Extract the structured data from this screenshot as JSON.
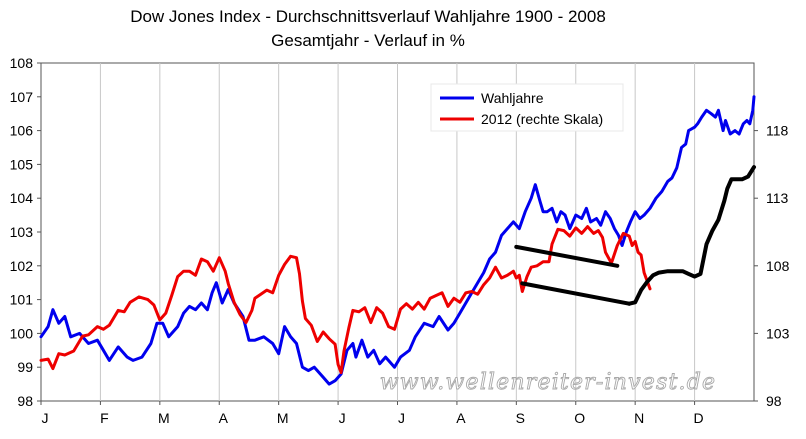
{
  "chart_data": {
    "type": "line",
    "title": "Dow Jones Index - Durchschnittsverlauf Wahljahre 1900 - 2008",
    "subtitle": "Gesamtjahr - Verlauf in %",
    "categories": [
      "J",
      "F",
      "M",
      "A",
      "M",
      "J",
      "J",
      "A",
      "S",
      "O",
      "N",
      "D"
    ],
    "y_left": {
      "min": 98,
      "max": 108,
      "ticks": [
        "98",
        "99",
        "100",
        "101",
        "102",
        "103",
        "104",
        "105",
        "106",
        "107",
        "108"
      ]
    },
    "y_right": {
      "min": 98,
      "max": 123,
      "ticks": [
        "98",
        "103",
        "108",
        "113",
        "118"
      ]
    },
    "grid": "vertical",
    "legend_position": "top-right",
    "series": [
      {
        "name": "Wahljahre",
        "color": "#0000ee",
        "axis": "left",
        "points": [
          [
            0,
            99.9
          ],
          [
            0.12,
            100.2
          ],
          [
            0.2,
            100.7
          ],
          [
            0.3,
            100.3
          ],
          [
            0.4,
            100.5
          ],
          [
            0.5,
            99.9
          ],
          [
            0.65,
            100.0
          ],
          [
            0.8,
            99.7
          ],
          [
            0.95,
            99.8
          ],
          [
            1.05,
            99.5
          ],
          [
            1.15,
            99.2
          ],
          [
            1.3,
            99.6
          ],
          [
            1.45,
            99.3
          ],
          [
            1.55,
            99.2
          ],
          [
            1.7,
            99.3
          ],
          [
            1.85,
            99.7
          ],
          [
            1.95,
            100.3
          ],
          [
            2.05,
            100.3
          ],
          [
            2.15,
            99.9
          ],
          [
            2.3,
            100.2
          ],
          [
            2.4,
            100.6
          ],
          [
            2.5,
            100.8
          ],
          [
            2.6,
            100.7
          ],
          [
            2.7,
            100.9
          ],
          [
            2.8,
            100.7
          ],
          [
            2.88,
            101.2
          ],
          [
            2.95,
            101.5
          ],
          [
            3.05,
            100.9
          ],
          [
            3.15,
            101.3
          ],
          [
            3.25,
            100.9
          ],
          [
            3.4,
            100.5
          ],
          [
            3.5,
            99.8
          ],
          [
            3.6,
            99.8
          ],
          [
            3.75,
            99.9
          ],
          [
            3.9,
            99.7
          ],
          [
            4.0,
            99.4
          ],
          [
            4.1,
            100.2
          ],
          [
            4.2,
            99.9
          ],
          [
            4.3,
            99.7
          ],
          [
            4.4,
            99.0
          ],
          [
            4.5,
            98.9
          ],
          [
            4.6,
            99.0
          ],
          [
            4.75,
            98.7
          ],
          [
            4.85,
            98.5
          ],
          [
            4.95,
            98.6
          ],
          [
            5.05,
            98.8
          ],
          [
            5.15,
            99.5
          ],
          [
            5.25,
            99.7
          ],
          [
            5.3,
            99.3
          ],
          [
            5.4,
            99.8
          ],
          [
            5.5,
            99.3
          ],
          [
            5.6,
            99.5
          ],
          [
            5.7,
            99.1
          ],
          [
            5.8,
            99.3
          ],
          [
            5.95,
            99.0
          ],
          [
            6.05,
            99.3
          ],
          [
            6.2,
            99.5
          ],
          [
            6.3,
            99.9
          ],
          [
            6.45,
            100.3
          ],
          [
            6.6,
            100.2
          ],
          [
            6.7,
            100.5
          ],
          [
            6.85,
            100.1
          ],
          [
            6.95,
            100.3
          ],
          [
            7.05,
            100.6
          ],
          [
            7.15,
            100.9
          ],
          [
            7.25,
            101.2
          ],
          [
            7.35,
            101.5
          ],
          [
            7.45,
            101.8
          ],
          [
            7.55,
            102.2
          ],
          [
            7.65,
            102.4
          ],
          [
            7.75,
            102.9
          ],
          [
            7.85,
            103.1
          ],
          [
            7.95,
            103.3
          ],
          [
            8.05,
            103.1
          ],
          [
            8.15,
            103.6
          ],
          [
            8.25,
            104.0
          ],
          [
            8.32,
            104.4
          ],
          [
            8.4,
            103.9
          ],
          [
            8.45,
            103.6
          ],
          [
            8.52,
            103.6
          ],
          [
            8.6,
            103.7
          ],
          [
            8.68,
            103.3
          ],
          [
            8.75,
            103.6
          ],
          [
            8.82,
            103.5
          ],
          [
            8.9,
            103.1
          ],
          [
            9.0,
            103.5
          ],
          [
            9.1,
            103.4
          ],
          [
            9.18,
            103.7
          ],
          [
            9.25,
            103.3
          ],
          [
            9.35,
            103.4
          ],
          [
            9.42,
            103.2
          ],
          [
            9.5,
            103.6
          ],
          [
            9.58,
            103.4
          ],
          [
            9.65,
            103.1
          ],
          [
            9.72,
            102.9
          ],
          [
            9.78,
            102.6
          ],
          [
            9.85,
            103.0
          ],
          [
            9.92,
            103.3
          ],
          [
            10.0,
            103.6
          ],
          [
            10.08,
            103.4
          ],
          [
            10.15,
            103.5
          ],
          [
            10.25,
            103.7
          ],
          [
            10.35,
            104.0
          ],
          [
            10.45,
            104.2
          ],
          [
            10.55,
            104.5
          ],
          [
            10.62,
            104.6
          ],
          [
            10.7,
            104.9
          ],
          [
            10.78,
            105.5
          ],
          [
            10.85,
            105.6
          ],
          [
            10.9,
            106.0
          ],
          [
            11.0,
            106.1
          ],
          [
            11.05,
            106.2
          ],
          [
            11.12,
            106.4
          ],
          [
            11.2,
            106.6
          ],
          [
            11.28,
            106.5
          ],
          [
            11.35,
            106.4
          ],
          [
            11.4,
            106.6
          ],
          [
            11.48,
            106.0
          ],
          [
            11.52,
            106.3
          ],
          [
            11.6,
            105.9
          ],
          [
            11.68,
            106.0
          ],
          [
            11.75,
            105.9
          ],
          [
            11.82,
            106.2
          ],
          [
            11.88,
            106.3
          ],
          [
            11.93,
            106.2
          ],
          [
            11.98,
            106.6
          ],
          [
            12.0,
            107.0
          ]
        ]
      },
      {
        "name": "2012 (rechte Skala)",
        "color": "#ee0000",
        "axis": "right",
        "points": [
          [
            0,
            101.0
          ],
          [
            0.12,
            101.1
          ],
          [
            0.2,
            100.4
          ],
          [
            0.3,
            101.5
          ],
          [
            0.4,
            101.4
          ],
          [
            0.55,
            101.7
          ],
          [
            0.7,
            102.8
          ],
          [
            0.8,
            102.9
          ],
          [
            0.95,
            103.5
          ],
          [
            1.05,
            103.3
          ],
          [
            1.15,
            103.6
          ],
          [
            1.3,
            104.7
          ],
          [
            1.4,
            104.6
          ],
          [
            1.5,
            105.3
          ],
          [
            1.65,
            105.7
          ],
          [
            1.8,
            105.5
          ],
          [
            1.9,
            105.1
          ],
          [
            2.0,
            104.0
          ],
          [
            2.1,
            104.5
          ],
          [
            2.2,
            105.8
          ],
          [
            2.3,
            107.2
          ],
          [
            2.4,
            107.6
          ],
          [
            2.5,
            107.6
          ],
          [
            2.6,
            107.3
          ],
          [
            2.7,
            108.5
          ],
          [
            2.8,
            108.3
          ],
          [
            2.9,
            107.6
          ],
          [
            3.0,
            108.6
          ],
          [
            3.1,
            107.6
          ],
          [
            3.15,
            106.7
          ],
          [
            3.25,
            105.3
          ],
          [
            3.35,
            104.4
          ],
          [
            3.45,
            103.8
          ],
          [
            3.55,
            104.7
          ],
          [
            3.6,
            105.6
          ],
          [
            3.7,
            105.9
          ],
          [
            3.8,
            106.2
          ],
          [
            3.9,
            106.0
          ],
          [
            4.0,
            107.3
          ],
          [
            4.1,
            108.1
          ],
          [
            4.2,
            108.7
          ],
          [
            4.3,
            108.6
          ],
          [
            4.35,
            107.4
          ],
          [
            4.4,
            105.4
          ],
          [
            4.45,
            104.1
          ],
          [
            4.55,
            103.6
          ],
          [
            4.65,
            102.4
          ],
          [
            4.75,
            103.1
          ],
          [
            4.85,
            102.6
          ],
          [
            4.95,
            102.2
          ],
          [
            5.0,
            100.7
          ],
          [
            5.05,
            100.1
          ],
          [
            5.1,
            101.7
          ],
          [
            5.18,
            103.4
          ],
          [
            5.25,
            104.7
          ],
          [
            5.35,
            104.6
          ],
          [
            5.45,
            104.9
          ],
          [
            5.55,
            103.8
          ],
          [
            5.65,
            104.9
          ],
          [
            5.75,
            104.5
          ],
          [
            5.85,
            103.5
          ],
          [
            5.95,
            103.3
          ],
          [
            6.05,
            104.8
          ],
          [
            6.15,
            105.2
          ],
          [
            6.25,
            104.8
          ],
          [
            6.35,
            105.3
          ],
          [
            6.45,
            104.8
          ],
          [
            6.55,
            105.6
          ],
          [
            6.65,
            105.8
          ],
          [
            6.75,
            106.0
          ],
          [
            6.85,
            105.0
          ],
          [
            6.95,
            105.6
          ],
          [
            7.05,
            105.3
          ],
          [
            7.15,
            106.0
          ],
          [
            7.25,
            106.1
          ],
          [
            7.35,
            105.9
          ],
          [
            7.45,
            106.6
          ],
          [
            7.55,
            107.1
          ],
          [
            7.65,
            107.9
          ],
          [
            7.75,
            107.1
          ],
          [
            7.85,
            107.3
          ],
          [
            7.95,
            107.6
          ],
          [
            8.0,
            107.1
          ],
          [
            8.05,
            107.3
          ],
          [
            8.1,
            106.1
          ],
          [
            8.18,
            107.2
          ],
          [
            8.25,
            107.9
          ],
          [
            8.35,
            108.0
          ],
          [
            8.45,
            108.3
          ],
          [
            8.55,
            108.3
          ],
          [
            8.6,
            109.6
          ],
          [
            8.7,
            110.7
          ],
          [
            8.8,
            110.6
          ],
          [
            8.9,
            110.2
          ],
          [
            9.0,
            110.8
          ],
          [
            9.1,
            110.4
          ],
          [
            9.2,
            110.9
          ],
          [
            9.3,
            110.4
          ],
          [
            9.38,
            110.6
          ],
          [
            9.45,
            110.1
          ],
          [
            9.5,
            109.0
          ],
          [
            9.6,
            108.2
          ],
          [
            9.7,
            109.5
          ],
          [
            9.8,
            110.4
          ],
          [
            9.9,
            110.2
          ],
          [
            9.95,
            109.5
          ],
          [
            10.0,
            109.8
          ],
          [
            10.05,
            109.0
          ],
          [
            10.1,
            108.8
          ],
          [
            10.15,
            107.5
          ],
          [
            10.25,
            106.3
          ]
        ]
      },
      {
        "name": "trend-upper",
        "color": "#000000",
        "axis": "right",
        "points": [
          [
            8.0,
            109.4
          ],
          [
            9.7,
            108.0
          ]
        ]
      },
      {
        "name": "trend-lower",
        "color": "#000000",
        "axis": "right",
        "points": [
          [
            8.1,
            106.7
          ],
          [
            9.9,
            105.2
          ]
        ]
      },
      {
        "name": "projection",
        "color": "#000000",
        "axis": "right",
        "points": [
          [
            9.9,
            105.2
          ],
          [
            10.0,
            105.3
          ],
          [
            10.1,
            106.2
          ],
          [
            10.2,
            106.8
          ],
          [
            10.3,
            107.3
          ],
          [
            10.4,
            107.5
          ],
          [
            10.55,
            107.6
          ],
          [
            10.8,
            107.6
          ],
          [
            10.9,
            107.4
          ],
          [
            11.0,
            107.2
          ],
          [
            11.1,
            107.4
          ],
          [
            11.2,
            109.6
          ],
          [
            11.3,
            110.6
          ],
          [
            11.4,
            111.4
          ],
          [
            11.5,
            112.8
          ],
          [
            11.55,
            113.7
          ],
          [
            11.62,
            114.4
          ],
          [
            11.7,
            114.4
          ],
          [
            11.8,
            114.4
          ],
          [
            11.9,
            114.6
          ],
          [
            12.0,
            115.3
          ]
        ]
      }
    ]
  },
  "watermark": "www.wellenreiter-invest.de"
}
